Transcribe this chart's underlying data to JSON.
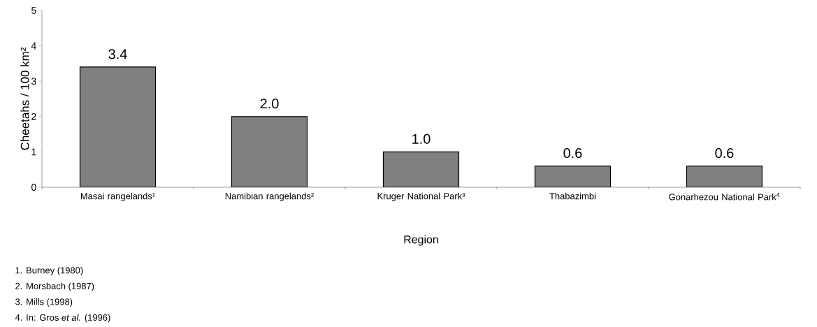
{
  "chart_data": {
    "type": "bar",
    "xlabel": "Region",
    "ylabel": "Cheetahs / 100 km²",
    "categories": [
      "Masai rangelands¹",
      "Namibian rangelands²",
      "Kruger National Park³",
      "Thabazimbi",
      "Gonarhezou National Park$^{4}$"
    ],
    "values": [
      3.4,
      2.0,
      1.0,
      0.6,
      0.6
    ],
    "value_labels": [
      "3.4",
      "2.0",
      "1.0",
      "0.6",
      "0.6"
    ],
    "color": "#808080",
    "ylim": [
      0,
      5
    ],
    "yticks": [
      0,
      1,
      2,
      3,
      4,
      5
    ],
    "grid": false,
    "annotations": [
      "1. Burney (1980)",
      "2. Morsbach (1987)",
      "3. Mills (1998)",
      "4. In: Gros *et al.*  (1996)"
    ]
  }
}
